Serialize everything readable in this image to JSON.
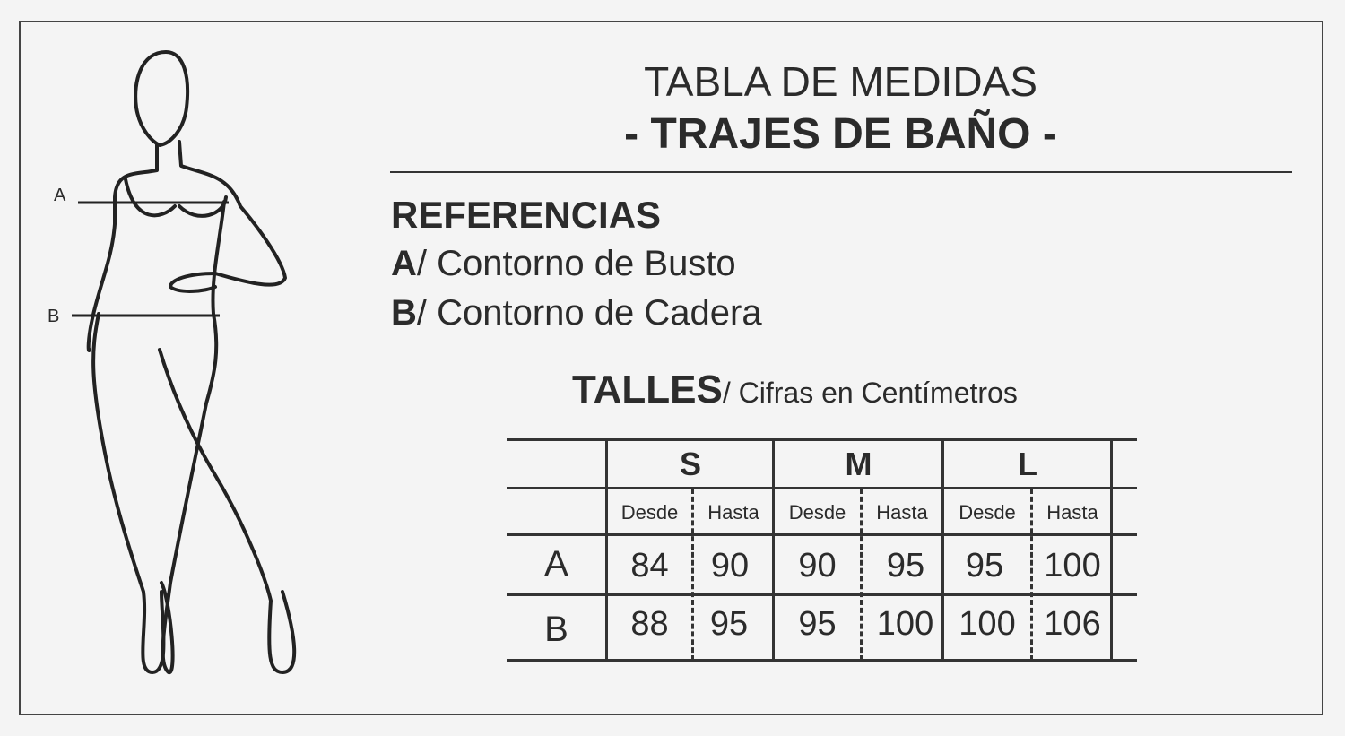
{
  "title": "TABLA DE MEDIDAS",
  "subtitle": "- TRAJES DE BAÑO -",
  "references": {
    "heading": "REFERENCIAS",
    "items": [
      {
        "key": "A",
        "label": "/ Contorno de Busto"
      },
      {
        "key": "B",
        "label": "/ Contorno de Cadera"
      }
    ]
  },
  "figure": {
    "marker_a": "A",
    "marker_b": "B"
  },
  "sizes": {
    "heading": "TALLES",
    "note": "/ Cifras en Centímetros",
    "columns": [
      "S",
      "M",
      "L"
    ],
    "sub": [
      "Desde",
      "Hasta"
    ],
    "rows": [
      {
        "label": "A",
        "values": [
          "84",
          "90",
          "90",
          "95",
          "95",
          "100"
        ]
      },
      {
        "label": "B",
        "values": [
          "88",
          "95",
          "95",
          "100",
          "100",
          "106"
        ]
      }
    ]
  }
}
